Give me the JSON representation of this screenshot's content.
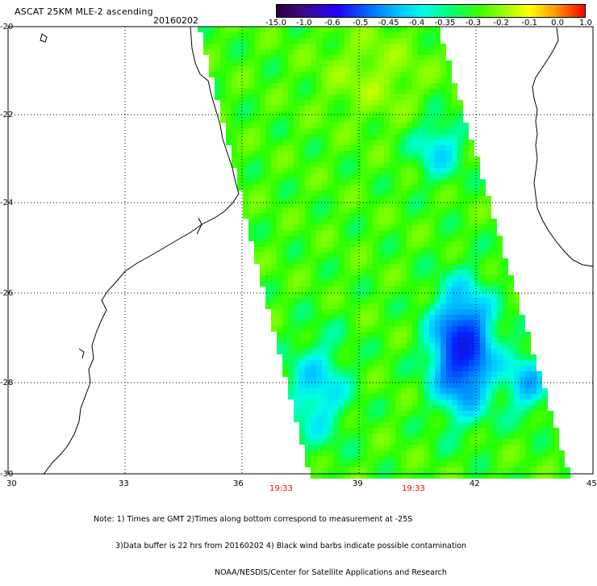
{
  "header": {
    "title": "ASCAT 25KM MLE-2 ascending",
    "date": "20160202"
  },
  "colorbar": {
    "labels": [
      "-15.0",
      "-1.0",
      "-0.6",
      "-0.5",
      "-0.45",
      "-0.4",
      "-0.35",
      "-0.3",
      "-0.2",
      "-0.1",
      "0.0",
      "1.0"
    ]
  },
  "map": {
    "lon_range": [
      30,
      45
    ],
    "lat_range": [
      -30,
      -20
    ],
    "x_ticks": [
      "30",
      "33",
      "36",
      "39",
      "42",
      "45"
    ],
    "y_ticks": [
      "-20",
      "-22",
      "-24",
      "-26",
      "-28",
      "-30"
    ],
    "times": [
      "19:33",
      "19:33"
    ],
    "colors": {
      "time_label": "#ff0000",
      "grid": "#000000",
      "coast": "#000000"
    }
  },
  "notes": {
    "line1": "Note: 1) Times are GMT 2)Times along bottom correspond to measurement at -25S",
    "line2": "3)Data buffer is 22 hrs from 20160202 4) Black wind barbs indicate possible contamination",
    "line3": "NOAA/NESDIS/Center for Satellite Applications and Research"
  }
}
